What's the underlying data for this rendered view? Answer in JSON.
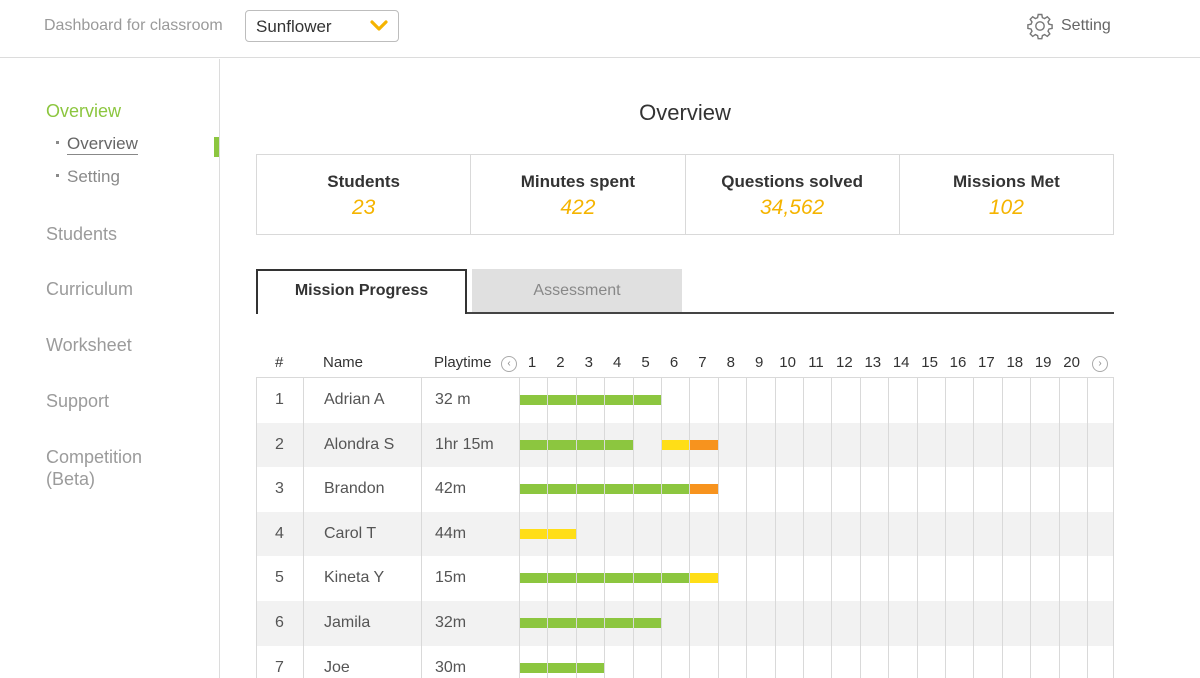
{
  "header": {
    "dashboard_label": "Dashboard for classroom",
    "classroom_selected": "Sunflower",
    "setting_label": "Setting"
  },
  "sidebar": {
    "items": [
      {
        "label": "Overview",
        "active": true
      },
      {
        "label": "Students"
      },
      {
        "label": "Curriculum"
      },
      {
        "label": "Worksheet"
      },
      {
        "label": "Support"
      },
      {
        "label": "Competition\n(Beta)"
      }
    ],
    "sub_items": [
      {
        "label": "Overview",
        "active": true
      },
      {
        "label": "Setting"
      }
    ]
  },
  "main": {
    "title": "Overview",
    "stats": [
      {
        "label": "Students",
        "value": "23"
      },
      {
        "label": "Minutes spent",
        "value": "422"
      },
      {
        "label": "Questions solved",
        "value": "34,562"
      },
      {
        "label": "Missions Met",
        "value": "102"
      }
    ],
    "tabs": [
      {
        "label": "Mission Progress",
        "active": true
      },
      {
        "label": "Assessment"
      }
    ],
    "table": {
      "headers": {
        "num": "#",
        "name": "Name",
        "playtime": "Playtime"
      },
      "mission_numbers": [
        "1",
        "2",
        "3",
        "4",
        "5",
        "6",
        "7",
        "8",
        "9",
        "10",
        "11",
        "12",
        "13",
        "14",
        "15",
        "16",
        "17",
        "18",
        "19",
        "20"
      ],
      "rows": [
        {
          "num": "1",
          "name": "Adrian A",
          "playtime": "32 m",
          "progress": [
            {
              "from": 1,
              "to": 5,
              "status": "complete"
            }
          ]
        },
        {
          "num": "2",
          "name": "Alondra S",
          "playtime": "1hr 15m",
          "progress": [
            {
              "from": 1,
              "to": 4,
              "status": "complete"
            },
            {
              "from": 6,
              "to": 6,
              "status": "in-progress"
            },
            {
              "from": 7,
              "to": 7,
              "status": "struggling"
            }
          ]
        },
        {
          "num": "3",
          "name": "Brandon",
          "playtime": "42m",
          "progress": [
            {
              "from": 1,
              "to": 6,
              "status": "complete"
            },
            {
              "from": 7,
              "to": 7,
              "status": "struggling"
            }
          ]
        },
        {
          "num": "4",
          "name": "Carol T",
          "playtime": "44m",
          "progress": [
            {
              "from": 1,
              "to": 2,
              "status": "in-progress"
            }
          ]
        },
        {
          "num": "5",
          "name": "Kineta Y",
          "playtime": "15m",
          "progress": [
            {
              "from": 1,
              "to": 6,
              "status": "complete"
            },
            {
              "from": 7,
              "to": 7,
              "status": "in-progress"
            }
          ]
        },
        {
          "num": "6",
          "name": "Jamila",
          "playtime": "32m",
          "progress": [
            {
              "from": 1,
              "to": 5,
              "status": "complete"
            }
          ]
        },
        {
          "num": "7",
          "name": "Joe",
          "playtime": "30m",
          "progress": [
            {
              "from": 1,
              "to": 3,
              "status": "complete"
            }
          ]
        }
      ]
    }
  },
  "colors": {
    "accent": "#8cc63f",
    "stat_value": "#f5b400",
    "complete": "#8cc63f",
    "in-progress": "#ffde17",
    "struggling": "#f7931e"
  }
}
